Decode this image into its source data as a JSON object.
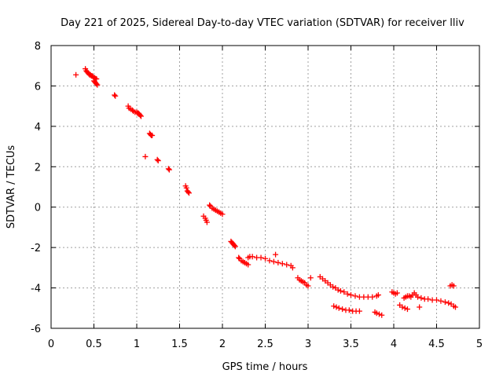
{
  "chart_data": {
    "type": "scatter",
    "title": "Day 221 of 2025, Sidereal Day-to-day VTEC variation (SDTVAR) for receiver lliv",
    "xlabel": "GPS time / hours",
    "ylabel": "SDTVAR / TECUs",
    "xlim": [
      0,
      5
    ],
    "ylim": [
      -6,
      8
    ],
    "xticks": [
      0,
      0.5,
      1,
      1.5,
      2,
      2.5,
      3,
      3.5,
      4,
      4.5,
      5
    ],
    "xtick_labels": [
      "0",
      "0.5",
      "1",
      "1.5",
      "2",
      "2.5",
      "3",
      "3.5",
      "4",
      "4.5",
      "5"
    ],
    "yticks": [
      -6,
      -4,
      -2,
      0,
      2,
      4,
      6,
      8
    ],
    "ytick_labels": [
      "-6",
      "-4",
      "-2",
      "0",
      "2",
      "4",
      "6",
      "8"
    ],
    "grid": true,
    "marker": "+",
    "color": "#ff0000",
    "series": [
      {
        "name": "SDTVAR",
        "points": [
          [
            0.29,
            6.55
          ],
          [
            0.4,
            6.85
          ],
          [
            0.41,
            6.75
          ],
          [
            0.42,
            6.7
          ],
          [
            0.43,
            6.65
          ],
          [
            0.44,
            6.6
          ],
          [
            0.45,
            6.55
          ],
          [
            0.46,
            6.55
          ],
          [
            0.47,
            6.5
          ],
          [
            0.48,
            6.5
          ],
          [
            0.49,
            6.45
          ],
          [
            0.5,
            6.4
          ],
          [
            0.51,
            6.4
          ],
          [
            0.52,
            6.35
          ],
          [
            0.53,
            6.35
          ],
          [
            0.5,
            6.25
          ],
          [
            0.51,
            6.2
          ],
          [
            0.52,
            6.15
          ],
          [
            0.53,
            6.1
          ],
          [
            0.54,
            6.05
          ],
          [
            0.74,
            5.55
          ],
          [
            0.75,
            5.5
          ],
          [
            0.9,
            5.0
          ],
          [
            0.91,
            4.9
          ],
          [
            0.93,
            4.85
          ],
          [
            0.95,
            4.8
          ],
          [
            0.96,
            4.75
          ],
          [
            0.98,
            4.7
          ],
          [
            1.0,
            4.7
          ],
          [
            1.01,
            4.65
          ],
          [
            1.02,
            4.65
          ],
          [
            1.03,
            4.6
          ],
          [
            1.04,
            4.55
          ],
          [
            1.05,
            4.5
          ],
          [
            1.1,
            2.5
          ],
          [
            1.15,
            3.65
          ],
          [
            1.16,
            3.6
          ],
          [
            1.17,
            3.55
          ],
          [
            1.18,
            3.55
          ],
          [
            1.24,
            2.35
          ],
          [
            1.25,
            2.3
          ],
          [
            1.37,
            1.9
          ],
          [
            1.38,
            1.85
          ],
          [
            1.57,
            1.05
          ],
          [
            1.58,
            0.95
          ],
          [
            1.59,
            0.8
          ],
          [
            1.6,
            0.75
          ],
          [
            1.61,
            0.7
          ],
          [
            1.78,
            -0.45
          ],
          [
            1.8,
            -0.55
          ],
          [
            1.81,
            -0.65
          ],
          [
            1.82,
            -0.75
          ],
          [
            1.85,
            0.1
          ],
          [
            1.86,
            0.05
          ],
          [
            1.88,
            -0.05
          ],
          [
            1.9,
            -0.1
          ],
          [
            1.92,
            -0.15
          ],
          [
            1.94,
            -0.2
          ],
          [
            1.96,
            -0.25
          ],
          [
            1.98,
            -0.3
          ],
          [
            2.0,
            -0.35
          ],
          [
            2.1,
            -1.7
          ],
          [
            2.11,
            -1.75
          ],
          [
            2.12,
            -1.8
          ],
          [
            2.13,
            -1.85
          ],
          [
            2.14,
            -1.9
          ],
          [
            2.15,
            -1.95
          ],
          [
            2.19,
            -2.5
          ],
          [
            2.2,
            -2.55
          ],
          [
            2.22,
            -2.65
          ],
          [
            2.24,
            -2.7
          ],
          [
            2.26,
            -2.75
          ],
          [
            2.28,
            -2.8
          ],
          [
            2.3,
            -2.85
          ],
          [
            2.3,
            -2.5
          ],
          [
            2.32,
            -2.45
          ],
          [
            2.35,
            -2.45
          ],
          [
            2.4,
            -2.5
          ],
          [
            2.45,
            -2.5
          ],
          [
            2.5,
            -2.55
          ],
          [
            2.55,
            -2.65
          ],
          [
            2.6,
            -2.7
          ],
          [
            2.62,
            -2.35
          ],
          [
            2.65,
            -2.75
          ],
          [
            2.7,
            -2.8
          ],
          [
            2.75,
            -2.85
          ],
          [
            2.8,
            -2.9
          ],
          [
            2.82,
            -3.0
          ],
          [
            2.88,
            -3.5
          ],
          [
            2.9,
            -3.6
          ],
          [
            2.92,
            -3.65
          ],
          [
            2.94,
            -3.7
          ],
          [
            2.96,
            -3.75
          ],
          [
            2.98,
            -3.85
          ],
          [
            3.0,
            -3.9
          ],
          [
            3.03,
            -3.5
          ],
          [
            3.14,
            -3.45
          ],
          [
            3.17,
            -3.55
          ],
          [
            3.2,
            -3.65
          ],
          [
            3.23,
            -3.75
          ],
          [
            3.26,
            -3.85
          ],
          [
            3.29,
            -3.95
          ],
          [
            3.3,
            -4.9
          ],
          [
            3.33,
            -4.95
          ],
          [
            3.36,
            -5.0
          ],
          [
            3.4,
            -5.05
          ],
          [
            3.44,
            -5.1
          ],
          [
            3.48,
            -5.1
          ],
          [
            3.52,
            -5.15
          ],
          [
            3.56,
            -5.15
          ],
          [
            3.6,
            -5.15
          ],
          [
            3.32,
            -4.0
          ],
          [
            3.35,
            -4.1
          ],
          [
            3.38,
            -4.15
          ],
          [
            3.42,
            -4.2
          ],
          [
            3.46,
            -4.3
          ],
          [
            3.5,
            -4.35
          ],
          [
            3.55,
            -4.4
          ],
          [
            3.6,
            -4.45
          ],
          [
            3.65,
            -4.45
          ],
          [
            3.7,
            -4.45
          ],
          [
            3.75,
            -4.45
          ],
          [
            3.8,
            -4.4
          ],
          [
            3.82,
            -4.35
          ],
          [
            3.78,
            -5.2
          ],
          [
            3.8,
            -5.25
          ],
          [
            3.83,
            -5.3
          ],
          [
            3.86,
            -5.35
          ],
          [
            3.98,
            -4.2
          ],
          [
            4.0,
            -4.25
          ],
          [
            4.02,
            -4.3
          ],
          [
            4.04,
            -4.25
          ],
          [
            4.07,
            -4.85
          ],
          [
            4.1,
            -4.95
          ],
          [
            4.13,
            -5.0
          ],
          [
            4.16,
            -5.05
          ],
          [
            4.12,
            -4.5
          ],
          [
            4.14,
            -4.45
          ],
          [
            4.16,
            -4.4
          ],
          [
            4.18,
            -4.4
          ],
          [
            4.2,
            -4.45
          ],
          [
            4.22,
            -4.35
          ],
          [
            4.24,
            -4.25
          ],
          [
            4.26,
            -4.35
          ],
          [
            4.28,
            -4.45
          ],
          [
            4.3,
            -4.95
          ],
          [
            4.32,
            -4.5
          ],
          [
            4.36,
            -4.55
          ],
          [
            4.4,
            -4.55
          ],
          [
            4.45,
            -4.6
          ],
          [
            4.5,
            -4.6
          ],
          [
            4.55,
            -4.65
          ],
          [
            4.6,
            -4.7
          ],
          [
            4.64,
            -4.75
          ],
          [
            4.67,
            -4.8
          ],
          [
            4.7,
            -4.9
          ],
          [
            4.72,
            -4.95
          ],
          [
            4.66,
            -3.9
          ],
          [
            4.68,
            -3.85
          ],
          [
            4.7,
            -3.9
          ]
        ]
      }
    ]
  }
}
